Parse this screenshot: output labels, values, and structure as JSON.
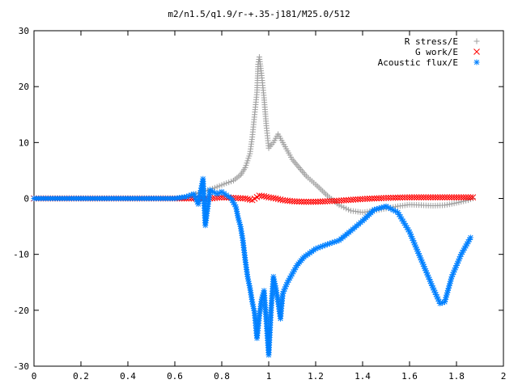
{
  "chart_data": {
    "type": "scatter",
    "title": "m2/n1.5/q1.9/r-+.35-j181/M25.0/512",
    "xlabel": "",
    "ylabel": "",
    "xlim": [
      0,
      2
    ],
    "ylim": [
      -30,
      30
    ],
    "x_ticks": [
      0,
      0.2,
      0.4,
      0.6,
      0.8,
      1,
      1.2,
      1.4,
      1.6,
      1.8,
      2
    ],
    "x_tick_labels": [
      "0",
      "0.2",
      "0.4",
      "0.6",
      "0.8",
      "1",
      "1.2",
      "1.4",
      "1.6",
      "1.8",
      "2"
    ],
    "y_ticks": [
      -30,
      -20,
      -10,
      0,
      10,
      20,
      30
    ],
    "y_tick_labels": [
      "-30",
      "-20",
      "-10",
      "0",
      "10",
      "20",
      "30"
    ],
    "grid": false,
    "legend_position": "top-right",
    "series": [
      {
        "name": "R stress/E",
        "marker": "plus",
        "color": "#a0a0a0",
        "points": [
          [
            0.0,
            0
          ],
          [
            0.1,
            0
          ],
          [
            0.2,
            0
          ],
          [
            0.3,
            0
          ],
          [
            0.4,
            0
          ],
          [
            0.5,
            0
          ],
          [
            0.6,
            0
          ],
          [
            0.65,
            0.3
          ],
          [
            0.7,
            1.0
          ],
          [
            0.75,
            1.6
          ],
          [
            0.8,
            2.4
          ],
          [
            0.85,
            3.2
          ],
          [
            0.88,
            4.2
          ],
          [
            0.9,
            5.5
          ],
          [
            0.92,
            8.0
          ],
          [
            0.93,
            11.0
          ],
          [
            0.94,
            15.0
          ],
          [
            0.95,
            19.0
          ],
          [
            0.955,
            24.0
          ],
          [
            0.96,
            25.3
          ],
          [
            0.97,
            22.0
          ],
          [
            0.98,
            18.0
          ],
          [
            0.99,
            13.0
          ],
          [
            1.0,
            9.0
          ],
          [
            1.02,
            10.0
          ],
          [
            1.04,
            11.5
          ],
          [
            1.06,
            10.0
          ],
          [
            1.08,
            8.5
          ],
          [
            1.1,
            7.0
          ],
          [
            1.13,
            5.5
          ],
          [
            1.16,
            4.0
          ],
          [
            1.2,
            2.5
          ],
          [
            1.25,
            0.5
          ],
          [
            1.3,
            -1.2
          ],
          [
            1.35,
            -2.2
          ],
          [
            1.4,
            -2.5
          ],
          [
            1.45,
            -2.2
          ],
          [
            1.5,
            -1.8
          ],
          [
            1.55,
            -1.4
          ],
          [
            1.6,
            -1.1
          ],
          [
            1.65,
            -1.2
          ],
          [
            1.7,
            -1.3
          ],
          [
            1.75,
            -1.2
          ],
          [
            1.8,
            -0.8
          ],
          [
            1.85,
            -0.3
          ],
          [
            1.87,
            0
          ]
        ]
      },
      {
        "name": "G work/E",
        "marker": "cross",
        "color": "#ff0000",
        "points": [
          [
            0.0,
            0
          ],
          [
            0.1,
            0
          ],
          [
            0.2,
            0
          ],
          [
            0.3,
            0
          ],
          [
            0.4,
            0
          ],
          [
            0.5,
            0
          ],
          [
            0.6,
            0
          ],
          [
            0.7,
            0
          ],
          [
            0.75,
            0
          ],
          [
            0.8,
            0.2
          ],
          [
            0.85,
            0.1
          ],
          [
            0.9,
            0
          ],
          [
            0.93,
            -0.3
          ],
          [
            0.96,
            0.5
          ],
          [
            0.98,
            0.4
          ],
          [
            1.0,
            0.2
          ],
          [
            1.03,
            0
          ],
          [
            1.06,
            -0.3
          ],
          [
            1.1,
            -0.5
          ],
          [
            1.15,
            -0.6
          ],
          [
            1.2,
            -0.6
          ],
          [
            1.3,
            -0.4
          ],
          [
            1.4,
            -0.1
          ],
          [
            1.5,
            0.1
          ],
          [
            1.6,
            0.2
          ],
          [
            1.7,
            0.2
          ],
          [
            1.8,
            0.2
          ],
          [
            1.87,
            0.2
          ]
        ]
      },
      {
        "name": "Acoustic flux/E",
        "marker": "star",
        "color": "#0080ff",
        "points": [
          [
            0.0,
            0
          ],
          [
            0.1,
            0
          ],
          [
            0.2,
            0
          ],
          [
            0.3,
            0
          ],
          [
            0.4,
            0
          ],
          [
            0.5,
            0
          ],
          [
            0.6,
            0
          ],
          [
            0.65,
            0.3
          ],
          [
            0.68,
            0.8
          ],
          [
            0.7,
            -1.0
          ],
          [
            0.72,
            3.5
          ],
          [
            0.73,
            -4.8
          ],
          [
            0.75,
            1.5
          ],
          [
            0.78,
            0.8
          ],
          [
            0.8,
            1.2
          ],
          [
            0.82,
            0.6
          ],
          [
            0.84,
            0
          ],
          [
            0.86,
            -1.5
          ],
          [
            0.87,
            -3.5
          ],
          [
            0.88,
            -5.0
          ],
          [
            0.89,
            -7.5
          ],
          [
            0.9,
            -11.0
          ],
          [
            0.91,
            -14.0
          ],
          [
            0.92,
            -16.0
          ],
          [
            0.93,
            -18.5
          ],
          [
            0.94,
            -20.5
          ],
          [
            0.95,
            -25.0
          ],
          [
            0.96,
            -21.0
          ],
          [
            0.97,
            -18.0
          ],
          [
            0.98,
            -16.5
          ],
          [
            0.99,
            -22.0
          ],
          [
            1.0,
            -28.0
          ],
          [
            1.01,
            -20.0
          ],
          [
            1.02,
            -14.0
          ],
          [
            1.03,
            -16.0
          ],
          [
            1.04,
            -18.5
          ],
          [
            1.05,
            -21.5
          ],
          [
            1.06,
            -17.0
          ],
          [
            1.08,
            -15.0
          ],
          [
            1.1,
            -13.5
          ],
          [
            1.12,
            -12.0
          ],
          [
            1.15,
            -10.5
          ],
          [
            1.2,
            -9.0
          ],
          [
            1.25,
            -8.2
          ],
          [
            1.3,
            -7.5
          ],
          [
            1.35,
            -5.8
          ],
          [
            1.4,
            -4.0
          ],
          [
            1.45,
            -2.0
          ],
          [
            1.5,
            -1.4
          ],
          [
            1.55,
            -2.5
          ],
          [
            1.6,
            -6.0
          ],
          [
            1.65,
            -11.0
          ],
          [
            1.7,
            -16.0
          ],
          [
            1.73,
            -18.8
          ],
          [
            1.75,
            -18.5
          ],
          [
            1.78,
            -14.0
          ],
          [
            1.82,
            -10.0
          ],
          [
            1.86,
            -7.0
          ]
        ]
      }
    ]
  }
}
